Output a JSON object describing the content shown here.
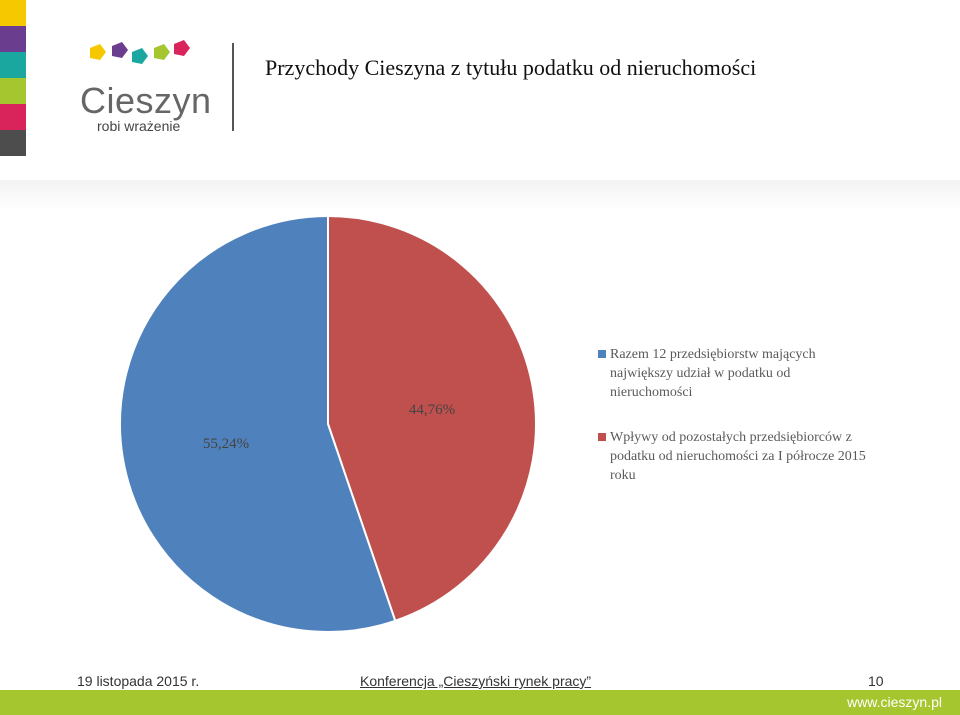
{
  "header": {
    "title": "Przychody Cieszyna z tytułu podatku od nieruchomości",
    "logo_name": "Cieszyn",
    "logo_slogan": "robi wrażenie"
  },
  "colors": {
    "strip": [
      "#f6c800",
      "#6b3d8f",
      "#1aa7a0",
      "#a6c62f",
      "#d9245b",
      "#4d4d4d"
    ],
    "series": [
      "#4f81bd",
      "#c0504d"
    ],
    "footer_bar": "#a6c62f"
  },
  "chart_data": {
    "type": "pie",
    "title": "",
    "series": [
      {
        "name": "Razem 12 przedsiębiorstw mających największy udział w podatku od nieruchomości",
        "value": 55.24,
        "label": "55,24%",
        "color": "#4f81bd"
      },
      {
        "name": "Wpływy od pozostałych przedsiębiorców z podatku od nieruchomości za I półrocze 2015 roku",
        "value": 44.76,
        "label": "44,76%",
        "color": "#c0504d"
      }
    ],
    "legend_position": "right"
  },
  "footer": {
    "date": "19 listopada 2015 r.",
    "conference": "Konferencja „Cieszyński rynek pracy”",
    "page": "10",
    "url": "www.cieszyn.pl"
  }
}
